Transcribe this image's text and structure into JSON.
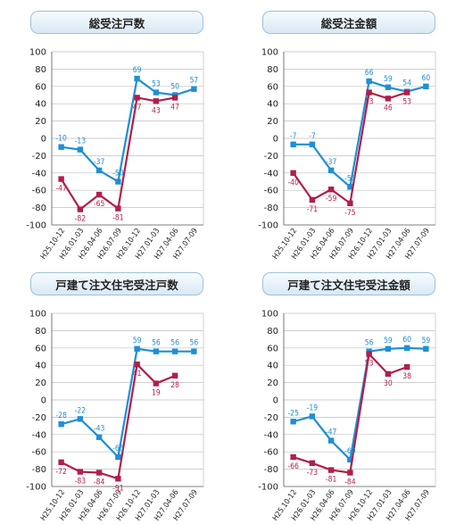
{
  "colors": {
    "blue": "#1f8fd6",
    "red": "#b01f4a",
    "grid": "#bfbfbf",
    "axis": "#555555"
  },
  "chart_data": [
    {
      "type": "line",
      "title": "総受注戸数",
      "categories": [
        "H25.10-12",
        "H26.01-03",
        "H26.04-06",
        "H26.07-09",
        "H26.10-12",
        "H27.01-03",
        "H27.04-06",
        "H27.07-09"
      ],
      "ylim": [
        -100,
        100
      ],
      "yticks": [
        100,
        80,
        60,
        40,
        20,
        0,
        -20,
        -40,
        -60,
        -80,
        -100
      ],
      "grid": true,
      "series": [
        {
          "color": "#1f8fd6",
          "values": [
            -10,
            -13,
            -37,
            -50,
            69,
            53,
            50,
            57
          ]
        },
        {
          "color": "#b01f4a",
          "values": [
            -47,
            -82,
            -65,
            -81,
            47,
            43,
            47,
            null
          ]
        }
      ]
    },
    {
      "type": "line",
      "title": "総受注金額",
      "categories": [
        "H25.10-12",
        "H26.01-03",
        "H26.04-06",
        "H26.07-09",
        "H26.10-12",
        "H27.01-03",
        "H27.04-06",
        "H27.07-09"
      ],
      "ylim": [
        -100,
        100
      ],
      "yticks": [
        100,
        80,
        60,
        40,
        20,
        0,
        -20,
        -40,
        -60,
        -80,
        -100
      ],
      "grid": true,
      "series": [
        {
          "color": "#1f8fd6",
          "values": [
            -7,
            -7,
            -37,
            -56,
            66,
            59,
            54,
            60
          ]
        },
        {
          "color": "#b01f4a",
          "values": [
            -40,
            -71,
            -59,
            -75,
            53,
            46,
            53,
            null
          ]
        }
      ]
    },
    {
      "type": "line",
      "title": "戸建て注文住宅受注戸数",
      "categories": [
        "H25.10-12",
        "H26.01-03",
        "H26.04-06",
        "H26.07-09",
        "H26.10-12",
        "H27.01-03",
        "H27.04-06",
        "H27.07-09"
      ],
      "ylim": [
        -100,
        100
      ],
      "yticks": [
        100,
        80,
        60,
        40,
        20,
        0,
        -20,
        -40,
        -60,
        -80,
        -100
      ],
      "grid": true,
      "series": [
        {
          "color": "#1f8fd6",
          "values": [
            -28,
            -22,
            -43,
            -66,
            59,
            56,
            56,
            56
          ]
        },
        {
          "color": "#b01f4a",
          "values": [
            -72,
            -83,
            -84,
            -91,
            41,
            19,
            28,
            null
          ]
        }
      ]
    },
    {
      "type": "line",
      "title": "戸建て注文住宅受注金額",
      "categories": [
        "H25.10-12",
        "H26.01-03",
        "H26.04-06",
        "H26.07-09",
        "H26.10-12",
        "H27.01-03",
        "H27.04-06",
        "H27.07-09"
      ],
      "ylim": [
        -100,
        100
      ],
      "yticks": [
        100,
        80,
        60,
        40,
        20,
        0,
        -20,
        -40,
        -60,
        -80,
        -100
      ],
      "grid": true,
      "series": [
        {
          "color": "#1f8fd6",
          "values": [
            -25,
            -19,
            -47,
            -69,
            56,
            59,
            60,
            59
          ]
        },
        {
          "color": "#b01f4a",
          "values": [
            -66,
            -73,
            -81,
            -84,
            53,
            30,
            38,
            null
          ]
        }
      ]
    }
  ]
}
